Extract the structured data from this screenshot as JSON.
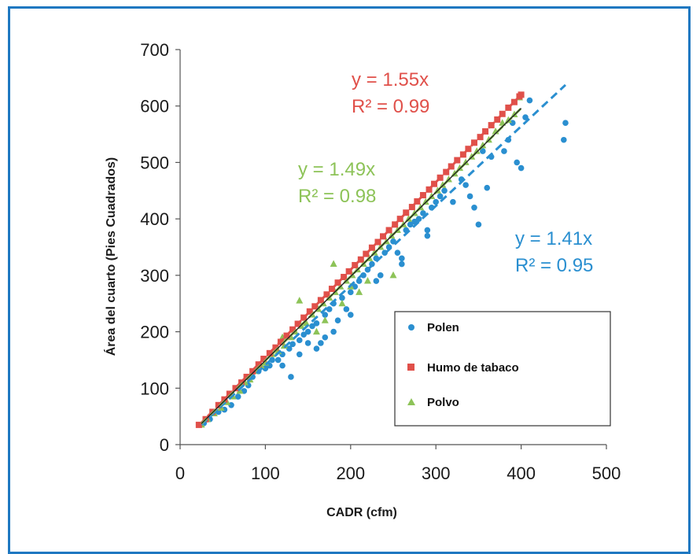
{
  "chart_data": {
    "type": "scatter",
    "xlabel": "CADR (cfm)",
    "ylabel": "Área del cuarto (Pies Cuadrados)",
    "xlim": [
      0,
      500
    ],
    "ylim": [
      0,
      700
    ],
    "xticks": [
      0,
      100,
      200,
      300,
      400,
      500
    ],
    "yticks": [
      0,
      100,
      200,
      300,
      400,
      500,
      600,
      700
    ],
    "grid": false,
    "legend_position": "bottom-right",
    "colors": {
      "polen": "#2a8fd0",
      "humo": "#e0504a",
      "polvo": "#8dc358",
      "fit_all": "#222222"
    },
    "series": [
      {
        "name": "Polen",
        "marker": "circle",
        "color": "#2a8fd0",
        "fit": {
          "slope": 1.41,
          "equation": "y = 1.41x",
          "r2": "R² = 0.95",
          "style": "dashed"
        },
        "points": [
          [
            28,
            38
          ],
          [
            35,
            45
          ],
          [
            45,
            58
          ],
          [
            52,
            62
          ],
          [
            60,
            70
          ],
          [
            68,
            85
          ],
          [
            75,
            95
          ],
          [
            80,
            105
          ],
          [
            85,
            120
          ],
          [
            92,
            130
          ],
          [
            100,
            135
          ],
          [
            105,
            140
          ],
          [
            108,
            150
          ],
          [
            115,
            150
          ],
          [
            120,
            160
          ],
          [
            128,
            170
          ],
          [
            132,
            178
          ],
          [
            140,
            185
          ],
          [
            145,
            195
          ],
          [
            150,
            200
          ],
          [
            155,
            210
          ],
          [
            160,
            215
          ],
          [
            165,
            180
          ],
          [
            170,
            230
          ],
          [
            175,
            240
          ],
          [
            180,
            250
          ],
          [
            185,
            220
          ],
          [
            190,
            260
          ],
          [
            195,
            240
          ],
          [
            200,
            270
          ],
          [
            205,
            280
          ],
          [
            210,
            290
          ],
          [
            215,
            300
          ],
          [
            220,
            310
          ],
          [
            225,
            320
          ],
          [
            230,
            330
          ],
          [
            235,
            300
          ],
          [
            240,
            340
          ],
          [
            245,
            350
          ],
          [
            250,
            360
          ],
          [
            255,
            340
          ],
          [
            260,
            330
          ],
          [
            265,
            380
          ],
          [
            270,
            390
          ],
          [
            275,
            395
          ],
          [
            280,
            400
          ],
          [
            285,
            410
          ],
          [
            290,
            370
          ],
          [
            295,
            420
          ],
          [
            300,
            430
          ],
          [
            305,
            440
          ],
          [
            310,
            450
          ],
          [
            320,
            430
          ],
          [
            330,
            470
          ],
          [
            335,
            460
          ],
          [
            340,
            440
          ],
          [
            345,
            420
          ],
          [
            350,
            390
          ],
          [
            355,
            520
          ],
          [
            360,
            455
          ],
          [
            365,
            510
          ],
          [
            380,
            520
          ],
          [
            385,
            540
          ],
          [
            390,
            570
          ],
          [
            395,
            500
          ],
          [
            400,
            490
          ],
          [
            405,
            580
          ],
          [
            410,
            610
          ],
          [
            450,
            540
          ],
          [
            452,
            570
          ],
          [
            120,
            140
          ],
          [
            150,
            180
          ],
          [
            180,
            200
          ],
          [
            130,
            120
          ],
          [
            160,
            170
          ],
          [
            200,
            230
          ],
          [
            230,
            290
          ],
          [
            260,
            320
          ],
          [
            290,
            380
          ],
          [
            140,
            160
          ],
          [
            170,
            190
          ]
        ]
      },
      {
        "name": "Humo de tabaco",
        "marker": "square",
        "color": "#e0504a",
        "fit": {
          "slope": 1.55,
          "equation": "y = 1.55x",
          "r2": "R² = 0.99",
          "style": "dashed"
        },
        "points": [
          [
            22,
            35
          ],
          [
            30,
            45
          ],
          [
            38,
            58
          ],
          [
            45,
            70
          ],
          [
            52,
            80
          ],
          [
            58,
            90
          ],
          [
            65,
            100
          ],
          [
            72,
            110
          ],
          [
            78,
            120
          ],
          [
            85,
            130
          ],
          [
            92,
            142
          ],
          [
            98,
            152
          ],
          [
            105,
            162
          ],
          [
            112,
            172
          ],
          [
            118,
            182
          ],
          [
            125,
            193
          ],
          [
            132,
            204
          ],
          [
            138,
            214
          ],
          [
            145,
            225
          ],
          [
            152,
            236
          ],
          [
            158,
            245
          ],
          [
            165,
            256
          ],
          [
            172,
            266
          ],
          [
            178,
            276
          ],
          [
            185,
            287
          ],
          [
            192,
            297
          ],
          [
            198,
            307
          ],
          [
            205,
            318
          ],
          [
            212,
            328
          ],
          [
            218,
            338
          ],
          [
            225,
            349
          ],
          [
            232,
            359
          ],
          [
            238,
            369
          ],
          [
            245,
            380
          ],
          [
            252,
            390
          ],
          [
            258,
            400
          ],
          [
            265,
            411
          ],
          [
            272,
            421
          ],
          [
            278,
            431
          ],
          [
            285,
            442
          ],
          [
            292,
            452
          ],
          [
            298,
            462
          ],
          [
            305,
            473
          ],
          [
            312,
            483
          ],
          [
            318,
            493
          ],
          [
            325,
            504
          ],
          [
            332,
            514
          ],
          [
            338,
            524
          ],
          [
            345,
            535
          ],
          [
            352,
            545
          ],
          [
            358,
            555
          ],
          [
            365,
            566
          ],
          [
            372,
            576
          ],
          [
            378,
            586
          ],
          [
            385,
            597
          ],
          [
            392,
            607
          ],
          [
            398,
            617
          ],
          [
            400,
            620
          ]
        ]
      },
      {
        "name": "Polvo",
        "marker": "triangle",
        "color": "#8dc358",
        "fit": {
          "slope": 1.49,
          "equation": "y = 1.49x",
          "r2": "R² = 0.98",
          "style": "dashed"
        },
        "points": [
          [
            25,
            35
          ],
          [
            32,
            45
          ],
          [
            40,
            55
          ],
          [
            48,
            65
          ],
          [
            55,
            75
          ],
          [
            62,
            85
          ],
          [
            70,
            95
          ],
          [
            76,
            110
          ],
          [
            82,
            115
          ],
          [
            88,
            130
          ],
          [
            95,
            140
          ],
          [
            100,
            145
          ],
          [
            108,
            160
          ],
          [
            115,
            165
          ],
          [
            122,
            175
          ],
          [
            130,
            190
          ],
          [
            135,
            200
          ],
          [
            142,
            210
          ],
          [
            148,
            215
          ],
          [
            155,
            230
          ],
          [
            162,
            240
          ],
          [
            168,
            250
          ],
          [
            175,
            260
          ],
          [
            182,
            270
          ],
          [
            188,
            280
          ],
          [
            195,
            290
          ],
          [
            202,
            300
          ],
          [
            208,
            310
          ],
          [
            215,
            320
          ],
          [
            222,
            330
          ],
          [
            228,
            340
          ],
          [
            235,
            350
          ],
          [
            242,
            360
          ],
          [
            248,
            370
          ],
          [
            255,
            380
          ],
          [
            262,
            390
          ],
          [
            268,
            400
          ],
          [
            275,
            410
          ],
          [
            282,
            420
          ],
          [
            288,
            430
          ],
          [
            295,
            440
          ],
          [
            302,
            450
          ],
          [
            308,
            460
          ],
          [
            315,
            470
          ],
          [
            322,
            480
          ],
          [
            328,
            490
          ],
          [
            335,
            500
          ],
          [
            342,
            510
          ],
          [
            348,
            520
          ],
          [
            355,
            530
          ],
          [
            362,
            540
          ],
          [
            370,
            555
          ],
          [
            378,
            570
          ],
          [
            385,
            575
          ],
          [
            392,
            585
          ],
          [
            398,
            615
          ],
          [
            180,
            320
          ],
          [
            140,
            255
          ],
          [
            120,
            190
          ],
          [
            160,
            200
          ],
          [
            200,
            280
          ],
          [
            220,
            290
          ],
          [
            250,
            300
          ],
          [
            170,
            220
          ],
          [
            190,
            250
          ],
          [
            210,
            270
          ]
        ]
      }
    ],
    "overall_fit": {
      "slope": 1.49,
      "x_range": [
        25,
        400
      ]
    }
  }
}
